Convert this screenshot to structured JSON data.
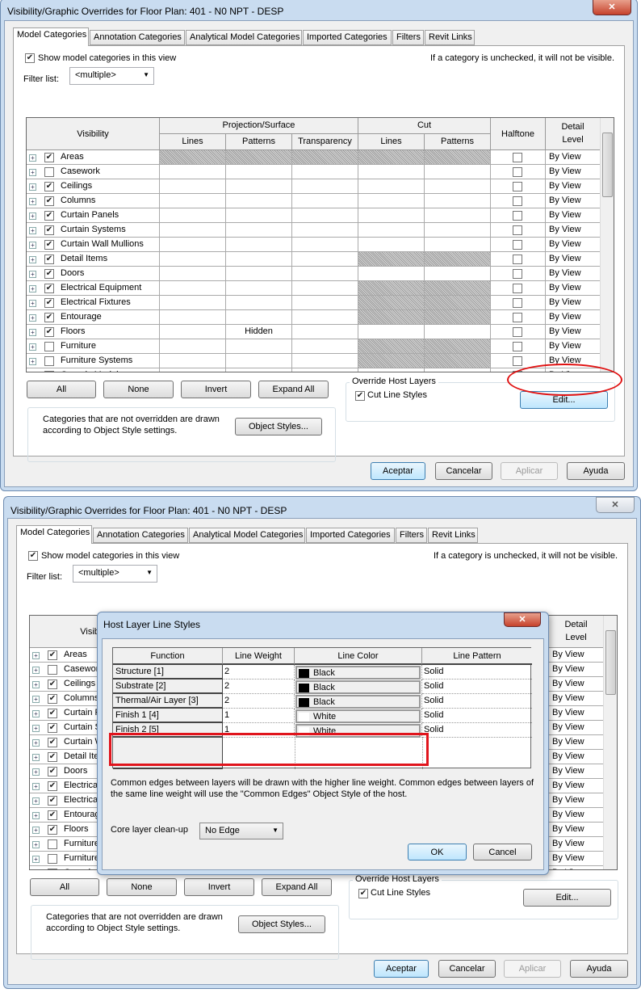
{
  "dialog": {
    "title": "Visibility/Graphic Overrides for Floor Plan: 401 - N0 NPT - DESP",
    "close_icon": "close-x-icon",
    "tabs": [
      "Model Categories",
      "Annotation Categories",
      "Analytical Model Categories",
      "Imported Categories",
      "Filters",
      "Revit Links"
    ],
    "show_categories_label": "Show model categories in this view",
    "hint": "If a category is unchecked, it will not be visible.",
    "filter_label": "Filter list:",
    "filter_value": "<multiple>",
    "headers": {
      "visibility": "Visibility",
      "projection": "Projection/Surface",
      "cut": "Cut",
      "halftone": "Halftone",
      "detail_level": "Detail Level",
      "lines": "Lines",
      "patterns": "Patterns",
      "transparency": "Transparency"
    },
    "categories": [
      {
        "name": "Areas",
        "checked": true,
        "proj_hatched": true,
        "cut_hatched": true,
        "patterns": "",
        "detail": "By View"
      },
      {
        "name": "Casework",
        "checked": false,
        "proj_hatched": false,
        "cut_hatched": false,
        "patterns": "",
        "detail": "By View"
      },
      {
        "name": "Ceilings",
        "checked": true,
        "proj_hatched": false,
        "cut_hatched": false,
        "patterns": "",
        "detail": "By View"
      },
      {
        "name": "Columns",
        "checked": true,
        "proj_hatched": false,
        "cut_hatched": false,
        "patterns": "",
        "detail": "By View"
      },
      {
        "name": "Curtain Panels",
        "checked": true,
        "proj_hatched": false,
        "cut_hatched": false,
        "patterns": "",
        "detail": "By View"
      },
      {
        "name": "Curtain Systems",
        "checked": true,
        "proj_hatched": false,
        "cut_hatched": false,
        "patterns": "",
        "detail": "By View"
      },
      {
        "name": "Curtain Wall Mullions",
        "checked": true,
        "proj_hatched": false,
        "cut_hatched": false,
        "patterns": "",
        "detail": "By View"
      },
      {
        "name": "Detail Items",
        "checked": true,
        "proj_hatched": false,
        "cut_hatched": true,
        "patterns": "",
        "detail": "By View"
      },
      {
        "name": "Doors",
        "checked": true,
        "proj_hatched": false,
        "cut_hatched": false,
        "patterns": "",
        "detail": "By View"
      },
      {
        "name": "Electrical Equipment",
        "checked": true,
        "proj_hatched": false,
        "cut_hatched": true,
        "patterns": "",
        "detail": "By View"
      },
      {
        "name": "Electrical Fixtures",
        "checked": true,
        "proj_hatched": false,
        "cut_hatched": true,
        "patterns": "",
        "detail": "By View"
      },
      {
        "name": "Entourage",
        "checked": true,
        "proj_hatched": false,
        "cut_hatched": true,
        "patterns": "",
        "detail": "By View"
      },
      {
        "name": "Floors",
        "checked": true,
        "proj_hatched": false,
        "cut_hatched": false,
        "patterns": "Hidden",
        "detail": "By View"
      },
      {
        "name": "Furniture",
        "checked": false,
        "proj_hatched": false,
        "cut_hatched": true,
        "patterns": "",
        "detail": "By View"
      },
      {
        "name": "Furniture Systems",
        "checked": false,
        "proj_hatched": false,
        "cut_hatched": true,
        "patterns": "",
        "detail": "By View"
      },
      {
        "name": "Generic Models",
        "checked": false,
        "proj_hatched": false,
        "cut_hatched": false,
        "patterns": "",
        "detail": "By View"
      }
    ],
    "buttons": {
      "all": "All",
      "none": "None",
      "invert": "Invert",
      "expand_all": "Expand All"
    },
    "object_style_note": [
      "Categories that are not overridden are drawn",
      "according to Object Style settings."
    ],
    "object_styles_button": "Object Styles...",
    "override_host_label": "Override Host Layers",
    "cut_line_styles_label": "Cut Line Styles",
    "edit_button": "Edit...",
    "footer": {
      "ok": "Aceptar",
      "cancel": "Cancelar",
      "apply": "Aplicar",
      "help": "Ayuda"
    },
    "highlight_color": "#e01010"
  },
  "host_layer_dialog": {
    "title": "Host Layer Line Styles",
    "headers": [
      "Function",
      "Line Weight",
      "Line Color",
      "Line Pattern"
    ],
    "rows": [
      {
        "function": "Structure [1]",
        "weight": "2",
        "color": "Black",
        "swatch": "#000000",
        "pattern": "Solid"
      },
      {
        "function": "Substrate [2]",
        "weight": "2",
        "color": "Black",
        "swatch": "#000000",
        "pattern": "Solid"
      },
      {
        "function": "Thermal/Air Layer [3]",
        "weight": "2",
        "color": "Black",
        "swatch": "#000000",
        "pattern": "Solid"
      },
      {
        "function": "Finish 1 [4]",
        "weight": "1",
        "color": "White",
        "swatch": "#ffffff",
        "pattern": "Solid"
      },
      {
        "function": "Finish 2 [5]",
        "weight": "1",
        "color": "White",
        "swatch": "#ffffff",
        "pattern": "Solid"
      }
    ],
    "note": [
      "Common edges between layers will be drawn with the higher line weight.  Common edges between layers of",
      "the same line weight will use the \"Common Edges\" Object Style of the host."
    ],
    "core_cleanup_label": "Core layer clean-up",
    "core_cleanup_value": "No Edge",
    "ok": "OK",
    "cancel": "Cancel",
    "highlight_color": "#e0141c"
  }
}
